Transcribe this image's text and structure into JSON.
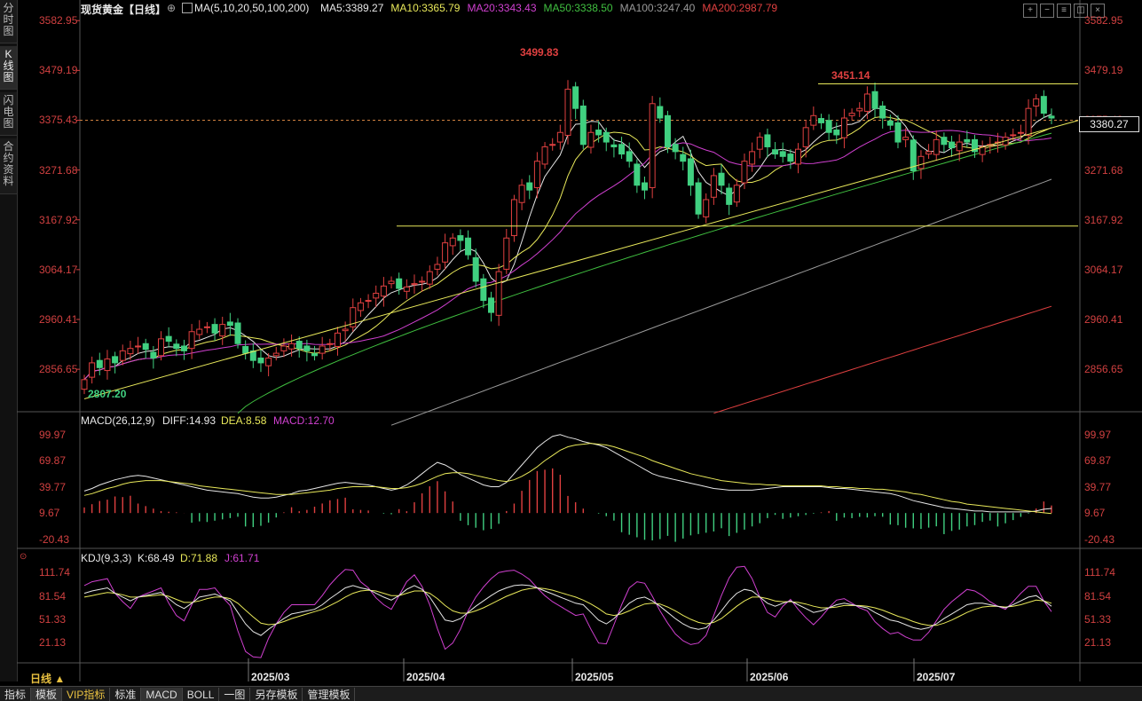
{
  "sidebar": {
    "tabs": [
      {
        "label": "分时图",
        "active": false
      },
      {
        "label": "K线图",
        "active": true
      },
      {
        "label": "闪电图",
        "active": false
      },
      {
        "label": "合约资料",
        "active": false
      }
    ]
  },
  "header": {
    "title": "现货黄金【日线】",
    "ma_label": "MA(5,10,20,50,100,200)",
    "ma_values": [
      {
        "text": "MA5:3389.27",
        "color": "#e6e6e6"
      },
      {
        "text": "MA10:3365.79",
        "color": "#e8e85a"
      },
      {
        "text": "MA20:3343.43",
        "color": "#d040d0"
      },
      {
        "text": "MA50:3338.50",
        "color": "#40c040"
      },
      {
        "text": "MA100:3247.40",
        "color": "#9a9a9a"
      },
      {
        "text": "MA200:2987.79",
        "color": "#e04040"
      }
    ]
  },
  "toolbar_icons": [
    "crosshair-icon",
    "minus-icon",
    "list-icon",
    "split-icon",
    "close-icon"
  ],
  "macd_header": {
    "label": "MACD(26,12,9)",
    "diff": "DIFF:14.93",
    "dea": "DEA:8.58",
    "macd": "MACD:12.70"
  },
  "kdj_header": {
    "label": "KDJ(9,3,3)",
    "k": "K:68.49",
    "d": "D:71.88",
    "j": "J:61.71"
  },
  "price_axis": [
    "3582.95",
    "3479.19",
    "3375.43",
    "3271.68",
    "3167.92",
    "3064.17",
    "2960.41",
    "2856.65"
  ],
  "macd_axis": [
    "99.97",
    "69.87",
    "39.77",
    "9.67",
    "-20.43"
  ],
  "kdj_axis": [
    "111.74",
    "81.54",
    "51.33",
    "21.13"
  ],
  "current_price_tag": "3380.27",
  "annotations": {
    "high1": "3499.83",
    "high2": "3451.14",
    "low": "2807.20"
  },
  "date_labels": [
    "2025/03",
    "2025/04",
    "2025/05",
    "2025/06",
    "2025/07"
  ],
  "period_label": "日线 ▲",
  "bottom_tabs": [
    "指标",
    "模板",
    "VIP指标",
    "标准",
    "MACD",
    "BOLL",
    "一图",
    "另存模板",
    "管理模板"
  ],
  "colors": {
    "up": "#e04040",
    "down": "#40d080",
    "ma5": "#e6e6e6",
    "ma10": "#e8e85a",
    "ma20": "#d040d0",
    "ma50": "#40c040",
    "ma100": "#9a9a9a",
    "ma200": "#e04040",
    "line": "#e8e85a"
  },
  "chart_data": [
    {
      "type": "candlestick",
      "title": "现货黄金【日线】",
      "ylim": [
        2770,
        3600
      ],
      "x_ticks": [
        "2025/03",
        "2025/04",
        "2025/05",
        "2025/06",
        "2025/07"
      ],
      "series": [
        {
          "name": "MA5",
          "last": 3389.27
        },
        {
          "name": "MA10",
          "last": 3365.79
        },
        {
          "name": "MA20",
          "last": 3343.43
        },
        {
          "name": "MA50",
          "last": 3338.5
        },
        {
          "name": "MA100",
          "last": 3247.4
        },
        {
          "name": "MA200",
          "last": 2987.79
        }
      ],
      "closes": [
        2835,
        2870,
        2860,
        2878,
        2870,
        2895,
        2900,
        2905,
        2898,
        2880,
        2920,
        2915,
        2900,
        2895,
        2935,
        2940,
        2945,
        2932,
        2950,
        2948,
        2910,
        2890,
        2875,
        2870,
        2880,
        2890,
        2905,
        2910,
        2900,
        2895,
        2885,
        2905,
        2910,
        2932,
        2940,
        2985,
        2995,
        3000,
        3015,
        3030,
        3040,
        3025,
        3028,
        3035,
        3040,
        3060,
        3075,
        3120,
        3130,
        3125,
        3095,
        3040,
        3000,
        2975,
        3060,
        3130,
        3210,
        3240,
        3230,
        3290,
        3320,
        3325,
        3350,
        3440,
        3400,
        3325,
        3350,
        3345,
        3330,
        3320,
        3305,
        3290,
        3240,
        3230,
        3410,
        3380,
        3320,
        3310,
        3290,
        3240,
        3180,
        3210,
        3260,
        3240,
        3200,
        3240,
        3290,
        3310,
        3340,
        3320,
        3305,
        3300,
        3290,
        3315,
        3360,
        3385,
        3370,
        3350,
        3345,
        3380,
        3390,
        3400,
        3430,
        3400,
        3380,
        3365,
        3330,
        3340,
        3270,
        3300,
        3310,
        3335,
        3325,
        3318,
        3330,
        3330,
        3310,
        3320,
        3325,
        3330,
        3340,
        3345,
        3350,
        3400,
        3420,
        3390,
        3380
      ],
      "ma_last_values": {
        "MA5": 3389.27,
        "MA10": 3365.79,
        "MA20": 3343.43,
        "MA50": 3338.5,
        "MA100": 3247.4,
        "MA200": 2987.79
      },
      "horizontal_lines": [
        3451.14,
        3155
      ],
      "trendline": [
        [
          0,
          2795
        ],
        [
          1,
          3360
        ]
      ],
      "annotations": [
        {
          "label": "3499.83",
          "value": 3499.83
        },
        {
          "label": "3451.14",
          "value": 3451.14
        },
        {
          "label": "2807.20",
          "value": 2807.2
        }
      ]
    },
    {
      "type": "bar",
      "title": "MACD(26,12,9)",
      "ylim": [
        -30,
        110
      ],
      "diff_last": 14.93,
      "dea_last": 8.58,
      "macd_last": 12.7,
      "diff": [
        35,
        38,
        42,
        45,
        48,
        50,
        52,
        53,
        52,
        50,
        48,
        46,
        44,
        42,
        40,
        38,
        36,
        35,
        34,
        33,
        32,
        30,
        28,
        27,
        27,
        28,
        30,
        32,
        35,
        36,
        38,
        40,
        42,
        44,
        45,
        44,
        43,
        42,
        40,
        38,
        36,
        38,
        42,
        48,
        55,
        62,
        68,
        65,
        60,
        54,
        50,
        46,
        42,
        40,
        40,
        45,
        55,
        65,
        75,
        85,
        92,
        98,
        100,
        97,
        95,
        92,
        90,
        88,
        85,
        80,
        75,
        70,
        65,
        60,
        55,
        52,
        50,
        48,
        46,
        44,
        42,
        40,
        38,
        37,
        36,
        36,
        36,
        36,
        37,
        38,
        39,
        40,
        40,
        40,
        40,
        40,
        40,
        39,
        38,
        38,
        37,
        36,
        35,
        34,
        33,
        32,
        30,
        27,
        24,
        22,
        20,
        18,
        16,
        15,
        14,
        13,
        12,
        12,
        11,
        11,
        11,
        11,
        11,
        11,
        12,
        14,
        15
      ],
      "dea": [
        30,
        32,
        35,
        38,
        40,
        43,
        45,
        46,
        47,
        47,
        47,
        46,
        45,
        44,
        43,
        41,
        40,
        39,
        38,
        37,
        36,
        35,
        34,
        33,
        32,
        31,
        31,
        31,
        32,
        33,
        34,
        35,
        36,
        38,
        39,
        40,
        40,
        40,
        40,
        39,
        38,
        38,
        39,
        41,
        44,
        48,
        52,
        55,
        56,
        56,
        55,
        53,
        51,
        49,
        47,
        46,
        48,
        52,
        57,
        63,
        70,
        76,
        82,
        86,
        88,
        89,
        90,
        89,
        88,
        86,
        83,
        80,
        77,
        74,
        70,
        67,
        64,
        61,
        58,
        55,
        53,
        51,
        49,
        47,
        46,
        45,
        44,
        43,
        43,
        42,
        42,
        41,
        41,
        41,
        41,
        41,
        41,
        40,
        40,
        39,
        39,
        38,
        38,
        37,
        37,
        36,
        35,
        34,
        32,
        31,
        29,
        27,
        25,
        23,
        22,
        20,
        19,
        18,
        17,
        16,
        15,
        14,
        13,
        12,
        11,
        10,
        9
      ]
    },
    {
      "type": "line",
      "title": "KDJ(9,3,3)",
      "ylim": [
        0,
        125
      ],
      "k_last": 68.49,
      "d_last": 71.88,
      "j_last": 61.71,
      "k": [
        85,
        88,
        90,
        92,
        85,
        80,
        75,
        80,
        82,
        84,
        86,
        78,
        70,
        65,
        72,
        80,
        82,
        84,
        80,
        75,
        60,
        45,
        35,
        30,
        38,
        45,
        52,
        58,
        60,
        62,
        64,
        70,
        78,
        85,
        92,
        95,
        92,
        90,
        85,
        80,
        76,
        82,
        90,
        95,
        90,
        80,
        65,
        50,
        48,
        52,
        60,
        68,
        75,
        82,
        88,
        92,
        95,
        96,
        95,
        92,
        88,
        84,
        80,
        76,
        72,
        70,
        60,
        50,
        45,
        52,
        62,
        72,
        78,
        80,
        75,
        68,
        60,
        52,
        45,
        40,
        38,
        40,
        50,
        62,
        75,
        85,
        90,
        88,
        80,
        72,
        68,
        72,
        75,
        70,
        65,
        60,
        62,
        66,
        70,
        72,
        70,
        68,
        66,
        60,
        55,
        50,
        48,
        44,
        40,
        38,
        40,
        45,
        52,
        58,
        64,
        70,
        72,
        72,
        70,
        68,
        66,
        70,
        75,
        80,
        82,
        75,
        68
      ],
      "d": [
        80,
        82,
        84,
        86,
        85,
        83,
        80,
        80,
        81,
        82,
        83,
        81,
        77,
        73,
        73,
        75,
        78,
        80,
        80,
        78,
        72,
        63,
        54,
        46,
        44,
        45,
        48,
        52,
        55,
        58,
        61,
        64,
        69,
        74,
        80,
        85,
        88,
        89,
        88,
        85,
        82,
        82,
        85,
        88,
        88,
        85,
        78,
        69,
        62,
        59,
        59,
        62,
        66,
        71,
        76,
        81,
        85,
        89,
        91,
        92,
        91,
        89,
        86,
        83,
        80,
        76,
        71,
        65,
        58,
        56,
        58,
        62,
        67,
        71,
        72,
        71,
        67,
        62,
        56,
        51,
        47,
        45,
        47,
        52,
        60,
        68,
        75,
        80,
        80,
        78,
        75,
        74,
        74,
        73,
        71,
        68,
        66,
        66,
        67,
        69,
        69,
        69,
        68,
        66,
        63,
        59,
        55,
        52,
        48,
        45,
        43,
        43,
        46,
        50,
        55,
        60,
        64,
        67,
        68,
        68,
        67,
        68,
        70,
        73,
        76,
        75,
        72
      ],
      "j": [
        95,
        100,
        102,
        104,
        85,
        74,
        65,
        80,
        84,
        88,
        92,
        72,
        56,
        49,
        70,
        90,
        90,
        92,
        80,
        69,
        36,
        9,
        2,
        1,
        26,
        45,
        60,
        70,
        70,
        70,
        70,
        82,
        96,
        107,
        116,
        115,
        100,
        92,
        79,
        70,
        64,
        82,
        100,
        109,
        94,
        70,
        39,
        12,
        20,
        38,
        62,
        80,
        93,
        104,
        112,
        114,
        115,
        110,
        103,
        92,
        82,
        74,
        68,
        62,
        56,
        58,
        38,
        20,
        19,
        44,
        70,
        92,
        100,
        98,
        81,
        62,
        46,
        32,
        23,
        18,
        20,
        30,
        56,
        82,
        105,
        119,
        120,
        104,
        80,
        60,
        54,
        68,
        77,
        64,
        53,
        44,
        54,
        66,
        76,
        78,
        72,
        66,
        62,
        48,
        39,
        32,
        34,
        28,
        24,
        24,
        34,
        49,
        64,
        74,
        82,
        90,
        88,
        82,
        74,
        68,
        64,
        74,
        85,
        94,
        94,
        75,
        61
      ]
    }
  ]
}
